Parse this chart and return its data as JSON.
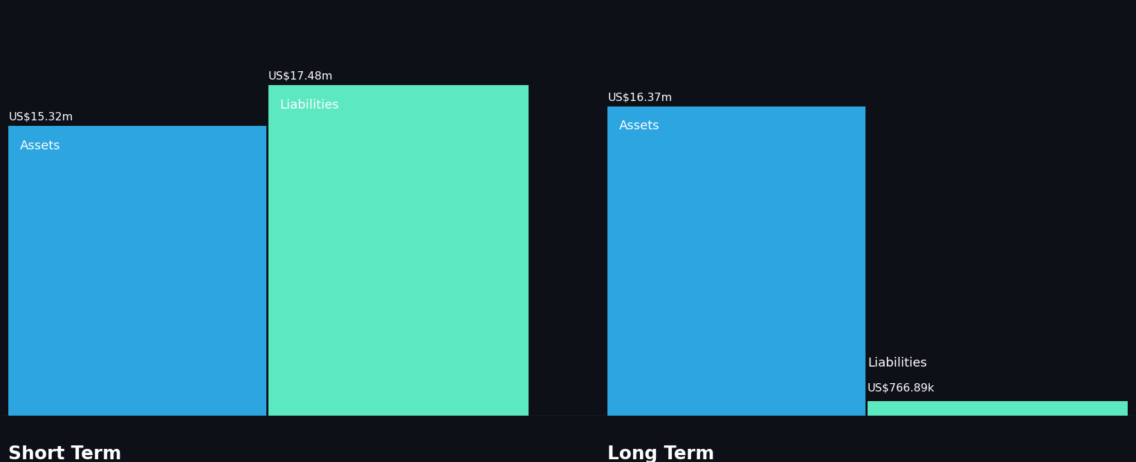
{
  "background_color": "#0d1117",
  "short_term": {
    "assets_value": 15.32,
    "liabilities_value": 17.48,
    "assets_label": "US$15.32m",
    "liabilities_label": "US$17.48m",
    "assets_color": "#2ca5e0",
    "liabilities_color": "#5ce8c0",
    "section_label": "Short Term"
  },
  "long_term": {
    "assets_value": 16.37,
    "liabilities_value": 0.76689,
    "assets_label": "US$16.37m",
    "liabilities_label": "US$766.89k",
    "assets_color": "#2ca5e0",
    "liabilities_color": "#5ce8c0",
    "section_label": "Long Term"
  },
  "bar_inner_label_assets": "Assets",
  "bar_inner_label_liabilities": "Liabilities",
  "value_fontsize": 11.5,
  "label_fontsize": 13,
  "section_label_fontsize": 19,
  "text_color": "#ffffff",
  "baseline_color": "#444455"
}
